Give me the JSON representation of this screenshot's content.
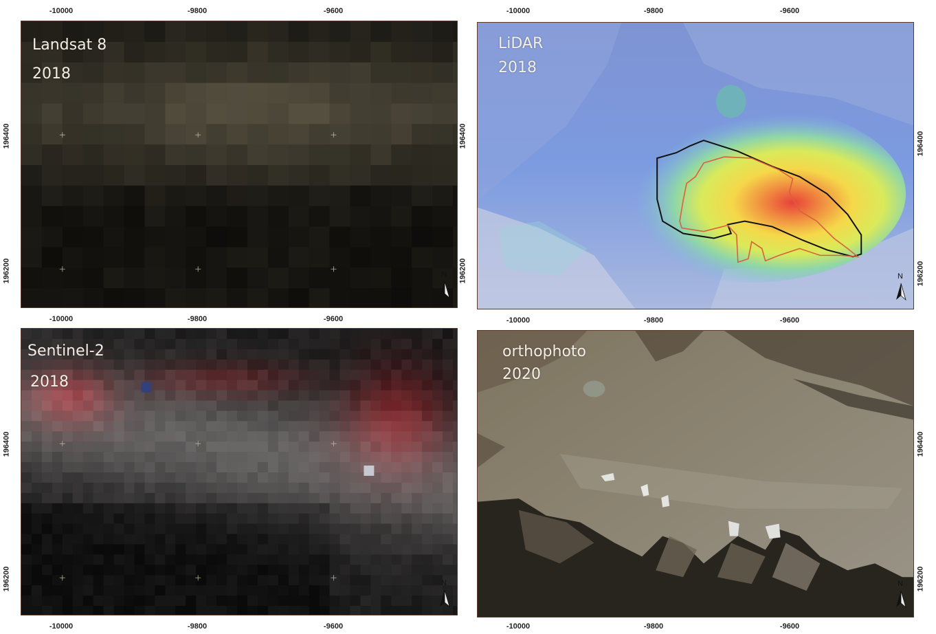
{
  "panels": [
    {
      "id": "landsat",
      "label_line1": "Landsat 8",
      "label_line2": "2018",
      "north_label": "N",
      "x_ticks": [
        "-10000",
        "-9800",
        "-9600"
      ],
      "x_ticks_bottom": [
        "-10000",
        "-9800",
        "-9600"
      ],
      "y_ticks_left": [
        "196400",
        "196200"
      ],
      "icon": "north-arrow-icon"
    },
    {
      "id": "lidar",
      "label_line1": "LiDAR",
      "label_line2": "2018",
      "north_label": "N",
      "x_ticks": [
        "-10000",
        "-9800",
        "-9600"
      ],
      "x_ticks_bottom": [
        "-10000",
        "-9800",
        "-9600"
      ],
      "y_ticks_right": [
        "196400",
        "196200"
      ],
      "y_ticks_left": [
        "196400",
        "196200"
      ],
      "icon": "north-arrow-icon"
    },
    {
      "id": "sentinel",
      "label_line1": "Sentinel-2",
      "label_line2": "2018",
      "north_label": "N",
      "x_ticks_bottom": [
        "-10000",
        "-9800",
        "-9600"
      ],
      "y_ticks_left": [
        "196400",
        "196200"
      ],
      "icon": "north-arrow-icon"
    },
    {
      "id": "orthophoto",
      "label_line1": "orthophoto",
      "label_line2": "2020",
      "north_label": "N",
      "x_ticks_bottom": [
        "-10000",
        "-9800",
        "-9600"
      ],
      "y_ticks_right": [
        "196400",
        "196200"
      ],
      "icon": "north-arrow-icon"
    }
  ],
  "colors": {
    "frame": "#5a3a2a",
    "outline_black": "#111111",
    "outline_red": "#d9603a"
  }
}
